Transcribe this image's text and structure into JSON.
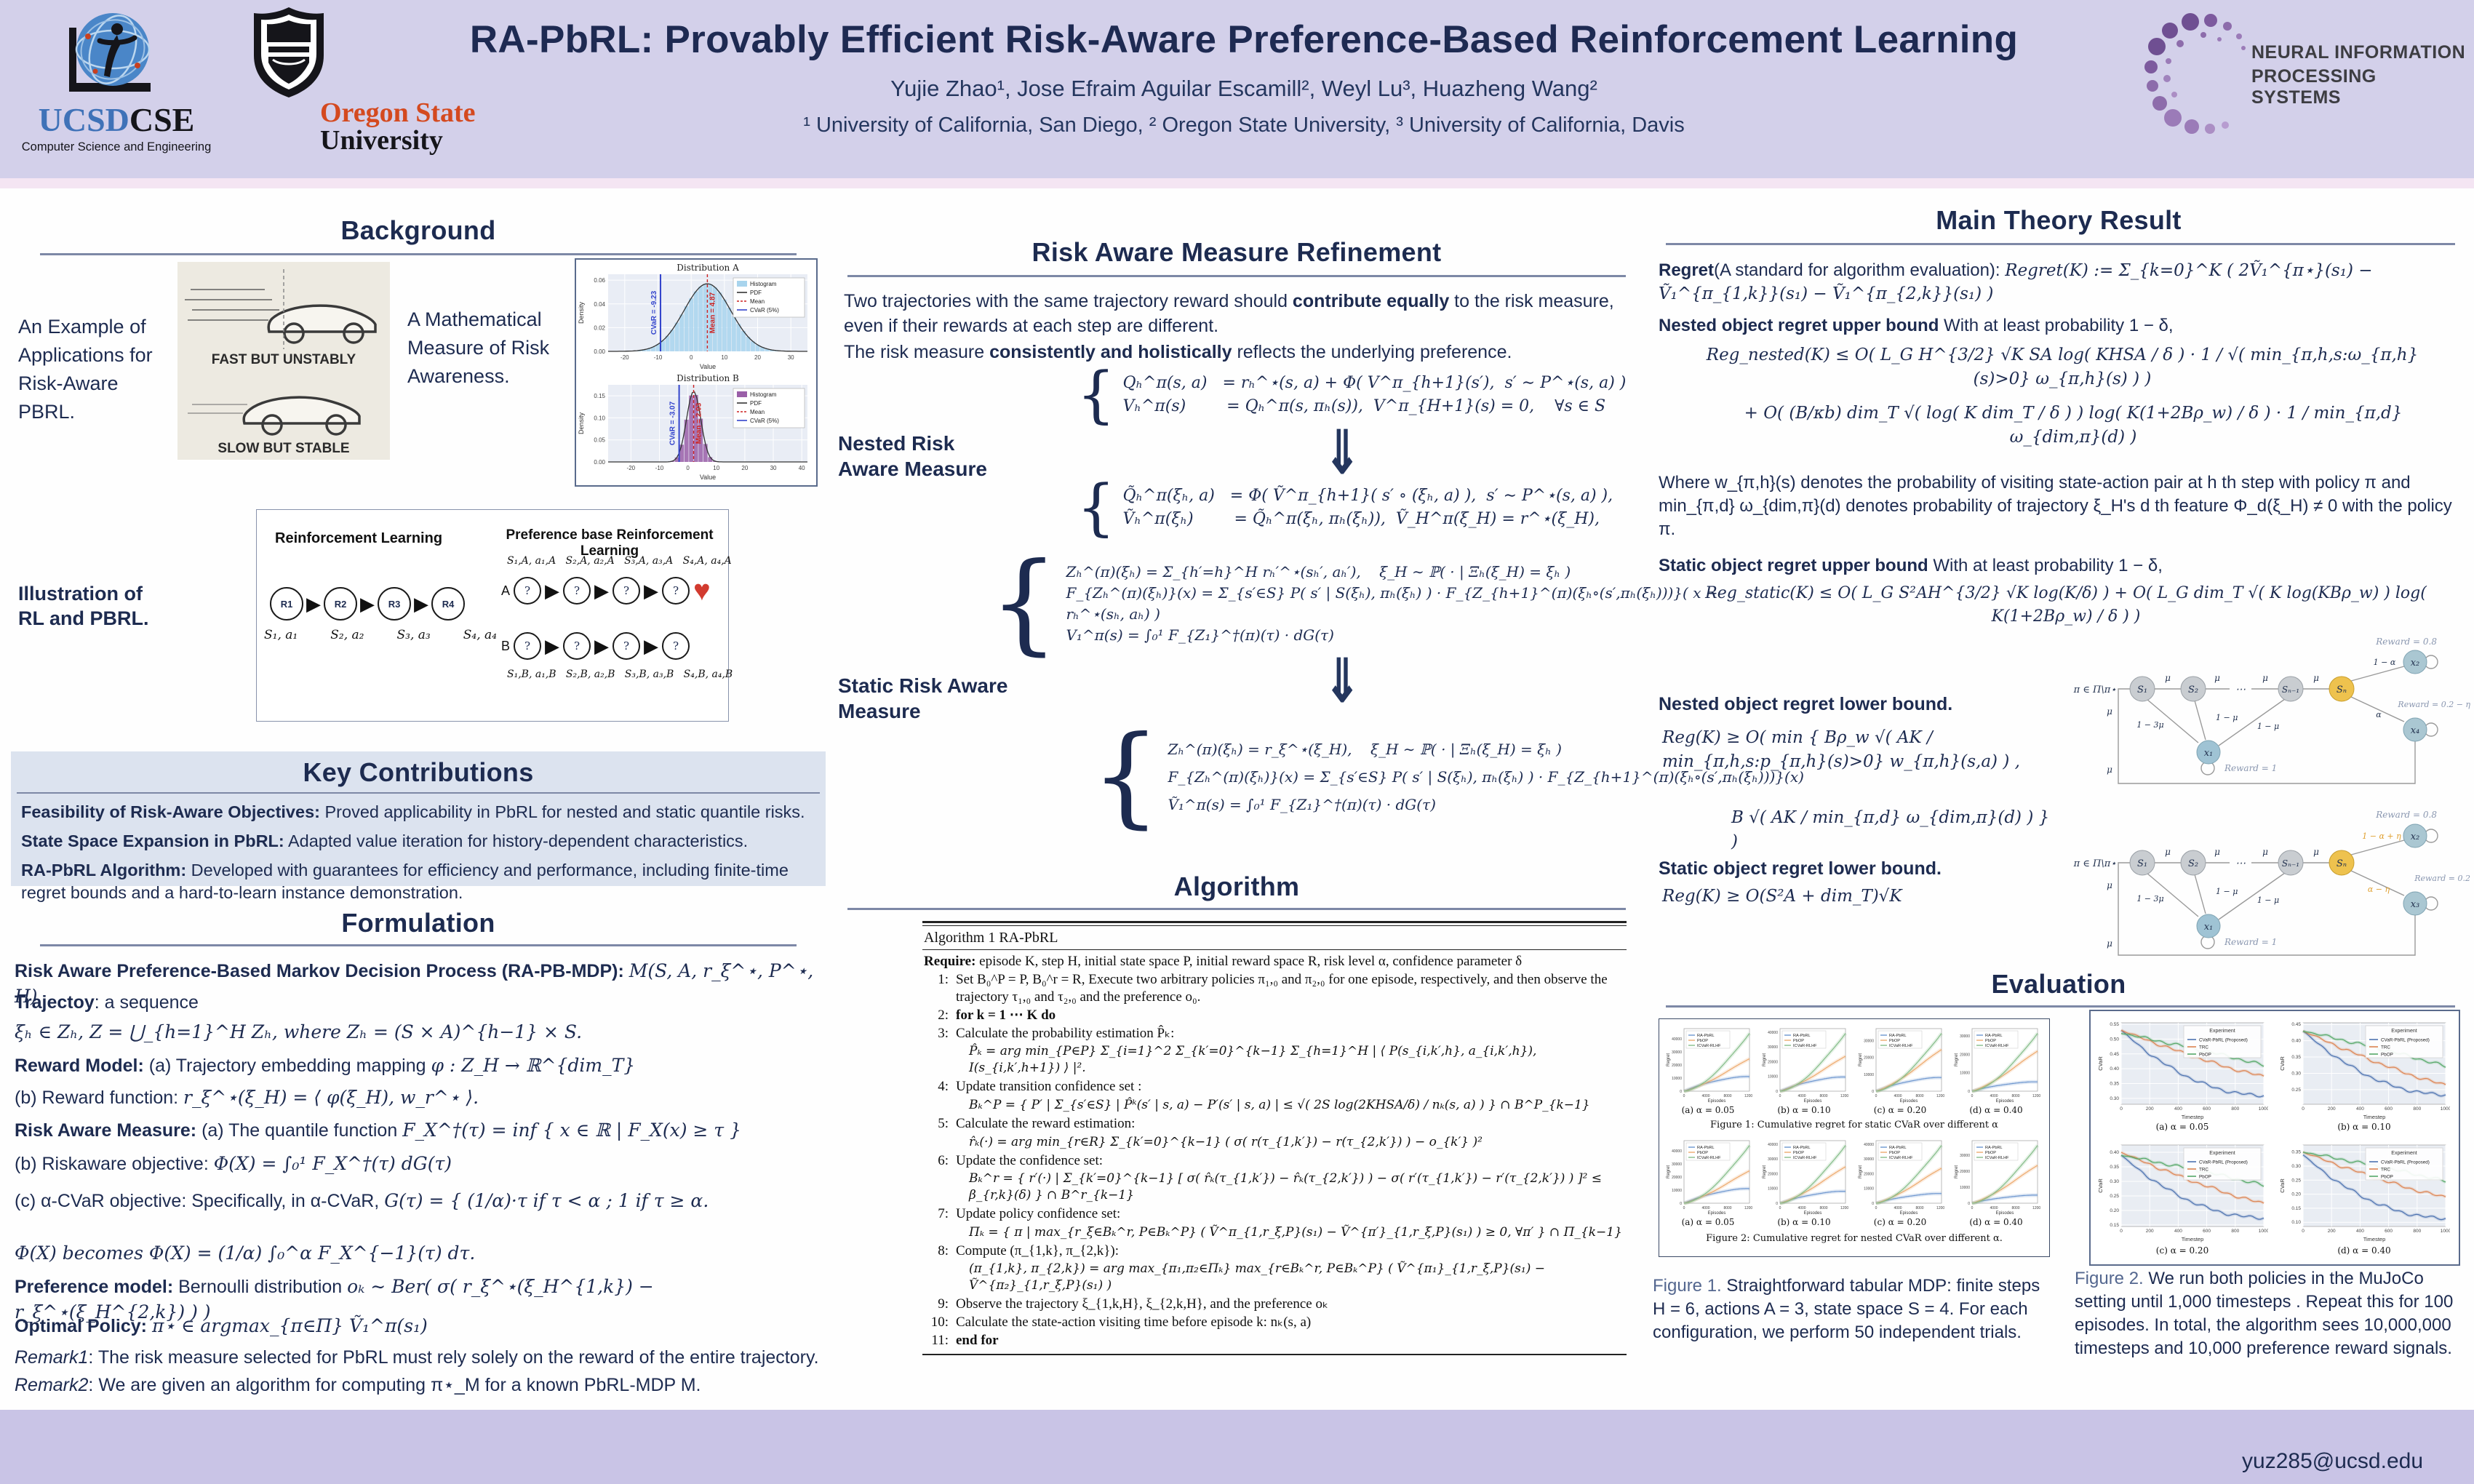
{
  "header": {
    "title": "RA-PbRL: Provably Efficient Risk-Aware Preference-Based Reinforcement Learning",
    "authors": "Yujie Zhao¹, Jose Efraim Aguilar Escamill², Weyl Lu³, Huazheng Wang²",
    "affiliations": "¹ University of California, San Diego,  ² Oregon State University,   ³ University of California, Davis",
    "ucsd": {
      "name_blue": "UCSD",
      "name_black": "CSE",
      "subtitle": "Computer Science and Engineering"
    },
    "osu": {
      "line1": "Oregon State",
      "line2": "University"
    },
    "neurips": {
      "line1": "NEURAL INFORMATION",
      "line2": "PROCESSING SYSTEMS"
    }
  },
  "background": {
    "heading": "Background",
    "example_label": "An Example of Applications for Risk-Aware PBRL.",
    "car_top": "FAST BUT UNSTABLY",
    "car_bottom": "SLOW BUT STABLE",
    "measure_label": "A Mathematical Measure of Risk Awareness.",
    "illustration_label": "Illustration of RL and PBRL.",
    "rl_title": "Reinforcement Learning",
    "pbrl_title": "Preference base Reinforcement Learning",
    "rl_nodes": [
      "R1",
      "R2",
      "R3",
      "R4"
    ],
    "rl_sublabels": [
      "S₁, a₁",
      "S₂, a₂",
      "S₃, a₃",
      "S₄, a₄"
    ],
    "pbrl_top": "S₁,A, a₁,A   S₂,A, a₂,A   S₃,A, a₃,A   S₄,A, a₄,A",
    "pbrl_bottom": "S₁,B, a₁,B   S₂,B, a₂,B   S₃,B, a₃,B   S₄,B, a₄,B",
    "row_a": "A",
    "row_b": "B",
    "question": "?",
    "heart": "♥"
  },
  "key_contributions": {
    "heading": "Key Contributions",
    "items": [
      {
        "bold": "Feasibility of Risk-Aware Objectives:",
        "text": " Proved applicability in PbRL for nested and static quantile risks."
      },
      {
        "bold": "State Space Expansion in PbRL:",
        "text": " Adapted value iteration for history-dependent characteristics."
      },
      {
        "bold": "RA-PbRL Algorithm:",
        "text": " Developed with guarantees for efficiency and performance, including finite-time regret bounds and a hard-to-learn instance demonstration."
      }
    ]
  },
  "formulation": {
    "heading": "Formulation",
    "lines": [
      {
        "bold": "Risk Aware Preference-Based Markov Decision Process (RA-PB-MDP): ",
        "math": "M(S, A, r_ξ^⋆, P^⋆, H)"
      },
      {
        "bold": "Trajectoy",
        "text": ": a sequence"
      },
      {
        "math": "ξₕ ∈ Zₕ,    Z = ⋃_{h=1}^H Zₕ, where Zₕ = (S × A)^{h−1} × S."
      },
      {
        "bold": "Reward Model: ",
        "text": "(a) Trajectory embedding mapping ",
        "math": "φ : Z_H → ℝ^{dim_T}"
      },
      {
        "text": "(b) Reward function: ",
        "math": "r_ξ^⋆(ξ_H) = ⟨ φ(ξ_H), w_r^⋆ ⟩."
      },
      {
        "bold": "Risk Aware Measure: ",
        "text": "(a) The quantile function ",
        "math": "F_X^†(τ) = inf { x ∈ ℝ | F_X(x) ≥ τ }"
      },
      {
        "text": "(b) Riskaware objective: ",
        "math": "Φ(X) = ∫₀¹ F_X^†(τ) dG(τ)"
      },
      {
        "text": "(c) α-CVaR objective: Specifically, in α-CVaR, ",
        "math": "G(τ) = { (1/α)·τ  if τ < α ;   1  if τ ≥ α."
      },
      {
        "math": "Φ(X) becomes Φ(X) = (1/α) ∫₀^α F_X^{−1}(τ) dτ."
      },
      {
        "bold": "Preference model: ",
        "text": "Bernoulli distribution ",
        "math": "oₖ ∼ Ber( σ( r_ξ^⋆(ξ_H^{1,k}) − r_ξ^⋆(ξ_H^{2,k}) ) )"
      },
      {
        "bold": "Optimal Policy: ",
        "math": "π⋆ ∈ argmax_{π∈Π} Ṽ₁^π(s₁)"
      },
      {
        "italic": "Remark1",
        "text": ": The risk measure selected for PbRL must rely solely on the reward of the entire trajectory."
      },
      {
        "italic": "Remark2",
        "text": ": We are given an algorithm for computing π⋆_M for a known PbRL-MDP M."
      }
    ]
  },
  "refinement": {
    "heading": "Risk Aware Measure Refinement",
    "p1a": "Two trajectories with the same trajectory reward should ",
    "p1b": "contribute equally",
    "p1c": " to the risk measure, even if their rewards at each step are different.",
    "p2a": "The risk measure ",
    "p2b": "consistently and holistically",
    "p2c": " reflects the underlying preference.",
    "nested_label": "Nested Risk Aware Measure",
    "static_label": "Static Risk Aware Measure",
    "arrow": "⇓",
    "brace": "{",
    "eq1": [
      "Qₕ^π(s, a)   = rₕ^⋆(s, a) + Φ( V^π_{h+1}(s′),  s′ ∼ P^⋆(s, a) )",
      "Vₕ^π(s)        = Qₕ^π(s, πₕ(s)),  V^π_{H+1}(s) = 0,    ∀s ∈ S"
    ],
    "eq2": [
      "Q̃ₕ^π(ξₕ, a)   = Φ( Ṽ^π_{h+1}( s′ ∘ (ξₕ, a) ),  s′ ∼ P^⋆(s, a) ),",
      "Ṽₕ^π(ξₕ)        = Q̃ₕ^π(ξₕ, πₕ(ξₕ)),  Ṽ_H^π(ξ_H) = r^⋆(ξ_H),"
    ],
    "eq3": [
      "Zₕ^(π)(ξₕ) = Σ_{h′=h}^H rₕ′^⋆(sₕ′, aₕ′),    ξ_H ∼ ℙ( · | Ξₕ(ξ_H) = ξₕ )",
      "F_{Zₕ^(π)(ξₕ)}(x) = Σ_{s′∈S} P( s′ | S(ξₕ), πₕ(ξₕ) ) · F_{Z_{h+1}^(π)(ξₕ∘(s′,πₕ(ξₕ)))}( x − rₕ^⋆(sₕ, aₕ) )",
      "V₁^π(s) = ∫₀¹ F_{Z₁}^†(π)(τ) · dG(τ)"
    ],
    "eq4": [
      "Zₕ^(π)(ξₕ) = r_ξ^⋆(ξ_H),    ξ_H ∼ ℙ( · | Ξₕ(ξ_H) = ξₕ )",
      "F_{Zₕ^(π)(ξₕ)}(x) = Σ_{s′∈S} P( s′ | S(ξₕ), πₕ(ξₕ) ) · F_{Z_{h+1}^(π)(ξₕ∘(s′,πₕ(ξₕ)))}(x)",
      "Ṽ₁^π(s) = ∫₀¹ F_{Z₁}^†(π)(τ) · dG(τ)"
    ]
  },
  "algorithm": {
    "heading": "Algorithm",
    "box_title": "Algorithm 1 RA-PbRL",
    "require_bold": "Require:",
    "require_text": " episode K, step H, initial state space P, initial reward space R, risk level α, confidence parameter δ",
    "steps": [
      {
        "no": "1:",
        "text": "Set B₀^P = P, B₀^r = R, Execute two arbitrary policies π₁,₀ and π₂,₀ for one episode, respectively, and then observe the trajectory τ₁,₀ and τ₂,₀ and the preference o₀."
      },
      {
        "no": "2:",
        "text": "for k = 1 ⋯ K do"
      },
      {
        "no": "3:",
        "text": "Calculate the probability estimation P̂ₖ:",
        "eq": "P̂ₖ = arg min_{P∈P} Σ_{i=1}^2 Σ_{k′=0}^{k−1} Σ_{h=1}^H | ⟨ P(s_{i,k′,h}, a_{i,k′,h}), I(s_{i,k′,h+1}) ⟩ |²."
      },
      {
        "no": "4:",
        "text": "Update transition confidence set :",
        "eq": "Bₖ^P = { P′ | Σ_{s′∈S} | P̂ᵏ(s′ | s, a) − P′(s′ | s, a) | ≤ √( 2S log(2KHSA/δ) / nₖ(s, a) ) } ∩ B^P_{k−1}"
      },
      {
        "no": "5:",
        "text": "Calculate the reward estimation:",
        "eq": "r̂ₖ(·) = arg min_{r∈R} Σ_{k′=0}^{k−1} ( σ( r(τ_{1,k′}) − r(τ_{2,k′}) ) − o_{k′} )²"
      },
      {
        "no": "6:",
        "text": "Update the confidence set:",
        "eq": "Bₖ^r = { r′(·) | Σ_{k′=0}^{k−1} [ σ( r̂ₖ(τ_{1,k′}) − r̂ₖ(τ_{2,k′}) ) − σ( r′(τ_{1,k′}) − r′(τ_{2,k′}) ) ]² ≤ β_{r,k}(δ) } ∩ B^r_{k−1}"
      },
      {
        "no": "7:",
        "text": "Update policy confidence set:",
        "eq": "Πₖ = { π | max_{r_ξ∈Bₖ^r, P∈Bₖ^P} ( Ṽ^π_{1,r_ξ,P}(s₁) − Ṽ^{π′}_{1,r_ξ,P}(s₁) ) ≥ 0, ∀π′ } ∩ Π_{k−1}"
      },
      {
        "no": "8:",
        "text": "Compute (π_{1,k}, π_{2,k}):",
        "eq": "(π_{1,k}, π_{2,k}) = arg max_{π₁,π₂∈Πₖ} max_{r∈Bₖ^r, P∈Bₖ^P} ( Ṽ^{π₁}_{1,r_ξ,P}(s₁) − Ṽ^{π₂}_{1,r_ξ,P}(s₁) )"
      },
      {
        "no": "9:",
        "text": "Observe the trajectory ξ_{1,k,H}, ξ_{2,k,H}, and the preference oₖ"
      },
      {
        "no": "10:",
        "text": "Calculate the state-action visiting time before episode k: nₖ(s, a)"
      },
      {
        "no": "11:",
        "text": "end for"
      }
    ]
  },
  "theory": {
    "heading": "Main Theory Result",
    "regret_bold": "Regret",
    "regret_text": "(A standard for algorithm evaluation): ",
    "regret_math": "Regret(K) := Σ_{k=0}^K ( 2Ṽ₁^{π⋆}(s₁) − Ṽ₁^{π_{1,k}}(s₁) − Ṽ₁^{π_{2,k}}(s₁) )",
    "nested_ub_bold": "Nested object regret upper bound",
    "nested_ub_text": "  With at least probability 1 − δ,",
    "nested_ub_eq1": "Reg_nested(K) ≤ O( L_G H^{3/2} √K SA log( KHSA / δ ) · 1 / √( min_{π,h,s:ω_{π,h}(s)>0} ω_{π,h}(s) ) )",
    "nested_ub_eq2": "+ O( (B/κb) dim_T √( log( K dim_T / δ ) ) log( K(1+2Bρ_w) / δ ) · 1 / min_{π,d} ω_{dim,π}(d) )",
    "where_text": "Where w_{π,h}(s) denotes the probability of visiting state-action pair at h th step with policy π and min_{π,d} ω_{dim,π}(d) denotes probability of trajectory ξ_H's d th feature Φ_d(ξ_H) ≠ 0 with the policy π.",
    "static_ub_bold": "Static object regret upper bound",
    "static_ub_text": " With at least probability 1 − δ,",
    "static_ub_eq": "Reg_static(K) ≤ O( L_G S²AH^{3/2} √K log(K/δ) ) + O( L_G dim_T √( K log(KBρ_w) ) log( K(1+2Bρ_w) / δ ) )",
    "nested_lb_label": "Nested object regret lower bound.",
    "nested_lb_eq1": "Reg(K) ≥ O( min { Bρ_w √( AK / min_{π,h,s:p_{π,h}(s)>0} w_{π,h}(s,a) ) ,",
    "nested_lb_eq2": "B √( AK / min_{π,d} ω_{dim,π}(d) ) } )",
    "static_lb_label": "Static object regret lower bound.",
    "static_lb_eq": "Reg(K) ≥ O(S²A + dim_T)√K"
  },
  "diagrams": {
    "d1": {
      "pi": "π ∈ Π\\π⋆",
      "s1": "S₁",
      "s2": "S₂",
      "dots": "⋯",
      "sn1": "Sₙ₋₁",
      "sn": "Sₙ",
      "x1": "x₁",
      "x2": "x₂",
      "x4": "x₄",
      "mu": "μ",
      "m13": "1 − 3μ",
      "m1a": "1 − μ",
      "m1b": "1 − μ",
      "alpha": "α",
      "one_minus_alpha": "1 − α",
      "r_top": "Reward = 0.8",
      "r_bottom": "Reward = 0.2 − η",
      "r_x1": "Reward = 1"
    },
    "d2": {
      "pi": "π ∈ Π\\π⋆",
      "s1": "S₁",
      "s2": "S₂",
      "dots": "⋯",
      "sn1": "Sₙ₋₁",
      "sn": "Sₙ",
      "x1": "x₁",
      "x2": "x₂",
      "x3": "x₃",
      "mu": "μ",
      "m13": "1 − 3μ",
      "m1a": "1 − μ",
      "m1b": "1 − μ",
      "branch_top": "1 − α + η",
      "branch_bottom": "α − η",
      "r_top": "Reward = 0.8",
      "r_bottom": "Reward = 0.2",
      "r_x1": "Reward = 1"
    }
  },
  "evaluation": {
    "heading": "Evaluation",
    "fig1_title": "Figure 1: Cumulative regret for static CVaR over different α",
    "fig2_title": "Figure 2: Cumulative regret for nested CVaR over different α.",
    "sub_captions": [
      "(a) α = 0.05",
      "(b) α = 0.10",
      "(c) α = 0.20",
      "(d) α = 0.40"
    ],
    "fig1_caption_lead": "Figure 1.",
    "fig1_caption": " Straightforward tabular MDP: finite steps H = 6, actions A = 3, state space S = 4. For each configuration, we perform 50 independent trials.",
    "fig2_caption_lead": "Figure 2.",
    "fig2_caption": " We run both policies in the MuJoCo setting until 1,000 timesteps . Repeat this for 100 episodes. In total, the algorithm sees 10,000,000 timesteps and 10,000 preference reward signals."
  },
  "footer": {
    "email": "yuz285@ucsd.edu"
  },
  "colors": {
    "header_bg": "#d3d0ea",
    "pink_strip": "#f4e5f3",
    "footer_bg": "#c9c4e6",
    "navy": "#1d2b50",
    "kc_bg": "#dce3ef",
    "rule": "#7d88a6",
    "ucsd_blue": "#3f72b8",
    "osu_orange": "#d4491f",
    "heart_red": "#d23b2f",
    "sn_orange": "#eec24e",
    "chain_gray": "#c9cdd1",
    "x_blue": "#aac7d2"
  },
  "chart_data": [
    {
      "id": "dist_a",
      "type": "area",
      "title": "Distribution A",
      "xlabel": "Value",
      "ylabel": "Density",
      "xlim": [
        -25,
        35
      ],
      "xticks": [
        -20,
        -10,
        0,
        10,
        20,
        30
      ],
      "ylim": [
        0,
        0.065
      ],
      "yticks": [
        0.0,
        0.02,
        0.04,
        0.06
      ],
      "mean": 4.87,
      "sigma": 7,
      "peak": 0.057,
      "cvar": -9.23,
      "mean_label": "Mean = 4.87",
      "cvar_label": "CVaR = -9.23",
      "hist_color": "#a8d4ed",
      "legend": [
        "Histogram",
        "PDF",
        "Mean",
        "CVaR (5%)"
      ]
    },
    {
      "id": "dist_b",
      "type": "area",
      "title": "Distribution B",
      "xl": "",
      "xlabel": "Value",
      "ylabel": "Density",
      "xlim": [
        -28,
        42
      ],
      "xticks": [
        -20,
        -10,
        0,
        10,
        20,
        30,
        40
      ],
      "ylim": [
        0,
        0.175
      ],
      "yticks": [
        0.0,
        0.05,
        0.1,
        0.15
      ],
      "mean": 2.03,
      "sigma": 2.5,
      "peak": 0.16,
      "cvar": -3.07,
      "mean_label": "Mean = 2.03",
      "cvar_label": "CVaR = -3.07",
      "hist_color": "#9a5fa8",
      "legend": [
        "Histogram",
        "PDF",
        "Mean",
        "CVaR (5%)"
      ]
    },
    {
      "id": "fig1",
      "type": "line",
      "xlabel": "Episodes",
      "ylabel": "Regret",
      "x_max": 12000,
      "xticks": [
        0,
        4000,
        8000,
        12000
      ],
      "series": [
        "RA-PbRL",
        "PbOP",
        "ICVaR-RLHF"
      ],
      "colors": [
        "#6d96cf",
        "#edaa6e",
        "#86bd8a"
      ],
      "shapes": [
        1.0,
        1.25,
        1.6
      ],
      "subplots": [
        {
          "alpha": "0.05",
          "final": [
            11000,
            25000,
            45000
          ]
        },
        {
          "alpha": "0.10",
          "final": [
            9500,
            24000,
            40000
          ]
        },
        {
          "alpha": "0.20",
          "final": [
            8000,
            25000,
            35000
          ]
        },
        {
          "alpha": "0.40",
          "final": [
            5000,
            22000,
            32000
          ]
        }
      ]
    },
    {
      "id": "fig2",
      "type": "line",
      "xlabel": "Episodes",
      "ylabel": "Regret",
      "x_max": 12000,
      "xticks": [
        0,
        4000,
        8000,
        12000
      ],
      "series": [
        "RA-PbRL",
        "PbOP",
        "ICVaR-RLHF"
      ],
      "colors": [
        "#6d96cf",
        "#edaa6e",
        "#86bd8a"
      ],
      "shapes": [
        1.0,
        1.25,
        1.6
      ],
      "subplots": [
        {
          "alpha": "0.05",
          "final": [
            11000,
            25000,
            45000
          ]
        },
        {
          "alpha": "0.10",
          "final": [
            8000,
            25000,
            40000
          ]
        },
        {
          "alpha": "0.20",
          "final": [
            6500,
            24000,
            40000
          ]
        },
        {
          "alpha": "0.40",
          "final": [
            5000,
            24000,
            37000
          ]
        }
      ]
    },
    {
      "id": "mujoco",
      "type": "line",
      "xlabel": "Timestep",
      "ylabel": "CVaR",
      "x_max": 1000,
      "xticks": [
        0,
        200,
        400,
        600,
        800,
        1000
      ],
      "legend_title": "Experiment",
      "series": [
        "CVaR-PbRL (Proposed)",
        "TRC",
        "PbOP"
      ],
      "colors": [
        "#4c72b0",
        "#dd8452",
        "#55a868"
      ],
      "decay": [
        2.0,
        1.2,
        0.9
      ],
      "subplots": [
        {
          "alpha": "0.05",
          "start": [
            0.53,
            0.53,
            0.52
          ],
          "end": [
            0.31,
            0.375,
            0.41
          ]
        },
        {
          "alpha": "0.10",
          "start": [
            0.43,
            0.43,
            0.43
          ],
          "end": [
            0.235,
            0.265,
            0.32
          ]
        },
        {
          "alpha": "0.20",
          "start": [
            0.39,
            0.4,
            0.39
          ],
          "end": [
            0.175,
            0.225,
            0.285
          ]
        },
        {
          "alpha": "0.40",
          "start": [
            0.34,
            0.35,
            0.35
          ],
          "end": [
            0.115,
            0.19,
            0.245
          ]
        }
      ]
    }
  ]
}
